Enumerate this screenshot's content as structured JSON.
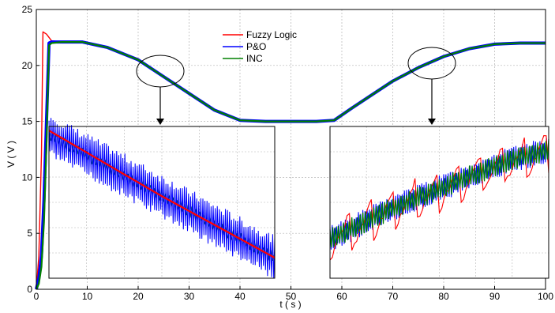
{
  "chart_data": {
    "type": "line",
    "xlabel": "t ( s )",
    "ylabel": "V ( V )",
    "xlim": [
      0,
      100
    ],
    "ylim": [
      0,
      25
    ],
    "xticks": [
      "0",
      "10",
      "20",
      "30",
      "40",
      "50",
      "60",
      "70",
      "80",
      "90",
      "100"
    ],
    "yticks": [
      "0",
      "5",
      "10",
      "15",
      "20",
      "25"
    ],
    "grid": true,
    "legend_position": "top-center",
    "colors": {
      "Fuzzy Logic": "#ff0000",
      "P&O": "#0000ff",
      "INC": "#008000"
    },
    "series": [
      {
        "name": "Fuzzy Logic",
        "x": [
          0,
          0.5,
          1,
          1.3,
          2,
          3,
          5,
          9,
          14,
          20,
          25,
          30,
          35,
          40,
          45,
          50,
          55,
          58.5,
          62,
          66,
          70,
          75,
          80,
          85,
          90,
          95,
          100
        ],
        "y": [
          0,
          3,
          12,
          23,
          22.8,
          22.2,
          22.1,
          22.1,
          21.6,
          20.6,
          19.0,
          17.5,
          16.0,
          15.1,
          15.0,
          15.0,
          15.0,
          15.1,
          16.2,
          17.4,
          18.6,
          19.8,
          20.8,
          21.5,
          21.9,
          22.0,
          22.0
        ]
      },
      {
        "name": "P&O",
        "x": [
          0,
          0.5,
          1,
          1.5,
          2,
          2.5,
          3,
          5,
          9,
          14,
          20,
          25,
          30,
          35,
          40,
          45,
          50,
          55,
          58.5,
          62,
          66,
          70,
          75,
          80,
          85,
          90,
          95,
          100
        ],
        "y": [
          0,
          1,
          3,
          8,
          15,
          22.0,
          22.1,
          22.1,
          22.1,
          21.6,
          20.5,
          19.0,
          17.5,
          16.0,
          15.1,
          15.0,
          15.0,
          15.0,
          15.1,
          16.2,
          17.4,
          18.6,
          19.8,
          20.8,
          21.5,
          21.9,
          22.0,
          22.0
        ]
      },
      {
        "name": "INC",
        "x": [
          0,
          0.5,
          1,
          1.5,
          2,
          2.5,
          3,
          5,
          9,
          14,
          20,
          25,
          30,
          35,
          40,
          45,
          50,
          55,
          58.5,
          62,
          66,
          70,
          75,
          80,
          85,
          90,
          95,
          100
        ],
        "y": [
          0,
          0.5,
          2,
          6,
          13,
          21.8,
          22.0,
          22.1,
          22.1,
          21.6,
          20.5,
          19.0,
          17.5,
          16.0,
          15.1,
          15.0,
          15.0,
          15.0,
          15.1,
          16.2,
          17.4,
          18.6,
          19.8,
          20.8,
          21.5,
          21.9,
          22.0,
          22.0
        ]
      }
    ],
    "zoom_insets": [
      {
        "name": "zoom-left",
        "x_range": [
          20,
          30
        ]
      },
      {
        "name": "zoom-right",
        "x_range": [
          72,
          82
        ]
      }
    ]
  }
}
